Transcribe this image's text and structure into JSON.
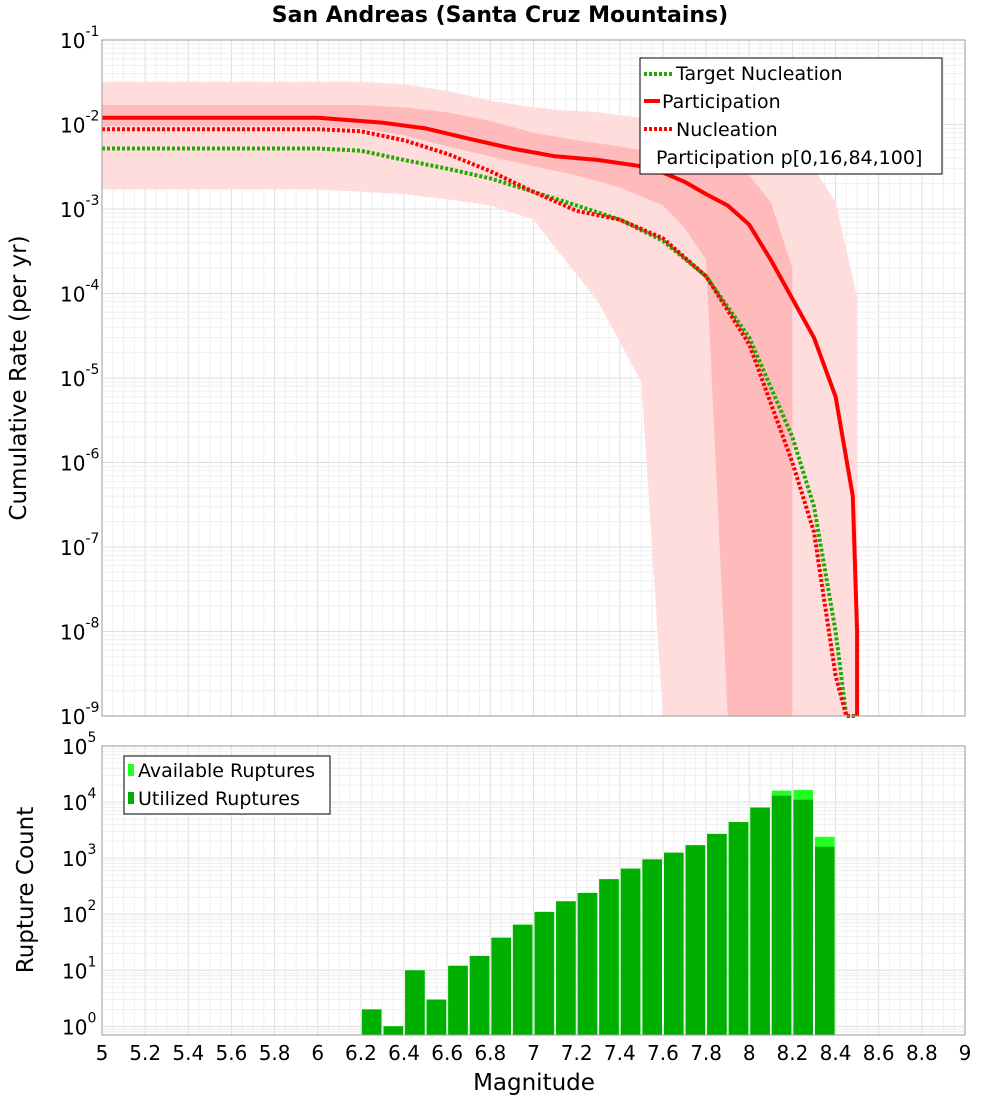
{
  "title": "San Andreas (Santa Cruz Mountains)",
  "chart_data": [
    {
      "type": "line",
      "title": "San Andreas (Santa Cruz Mountains)",
      "xlabel": "Magnitude",
      "ylabel": "Cumulative Rate (per yr)",
      "xlim": [
        5,
        9
      ],
      "ylim": [
        1e-09,
        0.1
      ],
      "yscale": "log",
      "grid": true,
      "legend_position": "top-right",
      "ytick_exponents": [
        -1,
        -2,
        -3,
        -4,
        -5,
        -6,
        -7,
        -8,
        -9
      ],
      "legend": [
        "Target Nucleation",
        "Participation",
        "Nucleation",
        "Participation p[0,16,84,100]"
      ],
      "series": [
        {
          "name": "Target Nucleation",
          "color": "#22aa00",
          "style": "dotted",
          "x": [
            5.0,
            5.5,
            6.0,
            6.2,
            6.4,
            6.6,
            6.8,
            7.0,
            7.2,
            7.4,
            7.6,
            7.8,
            8.0,
            8.2,
            8.3,
            8.4,
            8.45,
            8.5
          ],
          "y": [
            0.0052,
            0.0052,
            0.0052,
            0.0049,
            0.0038,
            0.003,
            0.0023,
            0.0016,
            0.0011,
            0.00075,
            0.00042,
            0.00016,
            3e-05,
            2e-06,
            3e-07,
            1e-08,
            1e-09,
            1e-09
          ]
        },
        {
          "name": "Participation",
          "color": "#ff0000",
          "style": "solid",
          "x": [
            5.0,
            5.5,
            6.0,
            6.1,
            6.3,
            6.5,
            6.7,
            6.9,
            7.1,
            7.3,
            7.5,
            7.6,
            7.7,
            7.8,
            7.9,
            8.0,
            8.1,
            8.3,
            8.4,
            8.48,
            8.5,
            8.5
          ],
          "y": [
            0.012,
            0.012,
            0.012,
            0.0115,
            0.0105,
            0.009,
            0.0068,
            0.0052,
            0.0042,
            0.0038,
            0.0032,
            0.0027,
            0.0021,
            0.0015,
            0.0011,
            0.00065,
            0.00025,
            3e-05,
            6e-06,
            4e-07,
            1e-08,
            1e-09
          ]
        },
        {
          "name": "Nucleation",
          "color": "#ff0000",
          "style": "dotted",
          "x": [
            5.0,
            5.5,
            6.0,
            6.2,
            6.4,
            6.6,
            6.8,
            7.0,
            7.2,
            7.4,
            7.6,
            7.8,
            8.0,
            8.2,
            8.3,
            8.4,
            8.45,
            8.48
          ],
          "y": [
            0.0088,
            0.0088,
            0.0088,
            0.0083,
            0.0065,
            0.0045,
            0.0028,
            0.0016,
            0.00095,
            0.00075,
            0.00045,
            0.00016,
            2.5e-05,
            1e-06,
            1.5e-07,
            3e-09,
            1e-09,
            1e-09
          ]
        }
      ],
      "bands": [
        {
          "name": "Participation p[0,100]",
          "color": "#ffdddd",
          "x": [
            5.0,
            6.0,
            6.2,
            6.4,
            6.6,
            6.8,
            7.0,
            7.1,
            7.3,
            7.5,
            7.6,
            7.8,
            8.0,
            8.2,
            8.3,
            8.4,
            8.5
          ],
          "lower": [
            0.0017,
            0.0017,
            0.0016,
            0.0015,
            0.0013,
            0.0011,
            0.00075,
            0.00035,
            8e-05,
            9e-06,
            1e-09,
            1e-09,
            1e-09,
            1e-09,
            1e-09,
            1e-09,
            1e-09
          ],
          "upper": [
            0.032,
            0.032,
            0.032,
            0.03,
            0.025,
            0.019,
            0.016,
            0.015,
            0.014,
            0.012,
            0.01,
            0.008,
            0.006,
            0.004,
            0.003,
            0.0012,
            9e-05
          ]
        },
        {
          "name": "Participation p[16,84]",
          "color": "#ffbbbb",
          "x": [
            5.0,
            6.0,
            6.2,
            6.4,
            6.6,
            6.8,
            7.0,
            7.2,
            7.4,
            7.6,
            7.7,
            7.8,
            7.9,
            8.0,
            8.1,
            8.2
          ],
          "lower": [
            0.0095,
            0.0095,
            0.009,
            0.0075,
            0.0055,
            0.0042,
            0.0032,
            0.0025,
            0.0018,
            0.0011,
            0.0006,
            0.00025,
            1e-09,
            1e-09,
            1e-09,
            1e-09
          ],
          "upper": [
            0.017,
            0.017,
            0.017,
            0.016,
            0.014,
            0.011,
            0.008,
            0.0065,
            0.0055,
            0.0045,
            0.004,
            0.0035,
            0.003,
            0.0025,
            0.0012,
            0.0002
          ]
        }
      ]
    },
    {
      "type": "bar",
      "xlabel": "Magnitude",
      "ylabel": "Rupture Count",
      "xlim": [
        5,
        9
      ],
      "ylim": [
        0.7,
        100000
      ],
      "yscale": "log",
      "grid": true,
      "legend_position": "top-left",
      "ytick_exponents": [
        0,
        1,
        2,
        3,
        4,
        5
      ],
      "xticks": [
        "5",
        "5.2",
        "5.4",
        "5.6",
        "5.8",
        "6",
        "6.2",
        "6.4",
        "6.6",
        "6.8",
        "7",
        "7.2",
        "7.4",
        "7.6",
        "7.8",
        "8",
        "8.2",
        "8.4",
        "8.6",
        "8.8",
        "9"
      ],
      "legend": [
        "Available Ruptures",
        "Utilized Ruptures"
      ],
      "bar_width": 0.1,
      "x": [
        6.25,
        6.35,
        6.45,
        6.55,
        6.65,
        6.75,
        6.85,
        6.95,
        7.05,
        7.15,
        7.25,
        7.35,
        7.45,
        7.55,
        7.65,
        7.75,
        7.85,
        7.95,
        8.05,
        8.15,
        8.25,
        8.35
      ],
      "series": [
        {
          "name": "Available Ruptures",
          "color": "#22ff22",
          "values": [
            2,
            1,
            10,
            3,
            12,
            18,
            38,
            65,
            110,
            170,
            240,
            420,
            650,
            950,
            1250,
            1700,
            2700,
            4400,
            8000,
            16000,
            16500,
            2400
          ]
        },
        {
          "name": "Utilized Ruptures",
          "color": "#00b000",
          "values": [
            2,
            1,
            10,
            3,
            12,
            18,
            38,
            65,
            110,
            170,
            240,
            420,
            650,
            950,
            1250,
            1700,
            2700,
            4400,
            8000,
            13000,
            11000,
            1600
          ]
        }
      ]
    }
  ]
}
